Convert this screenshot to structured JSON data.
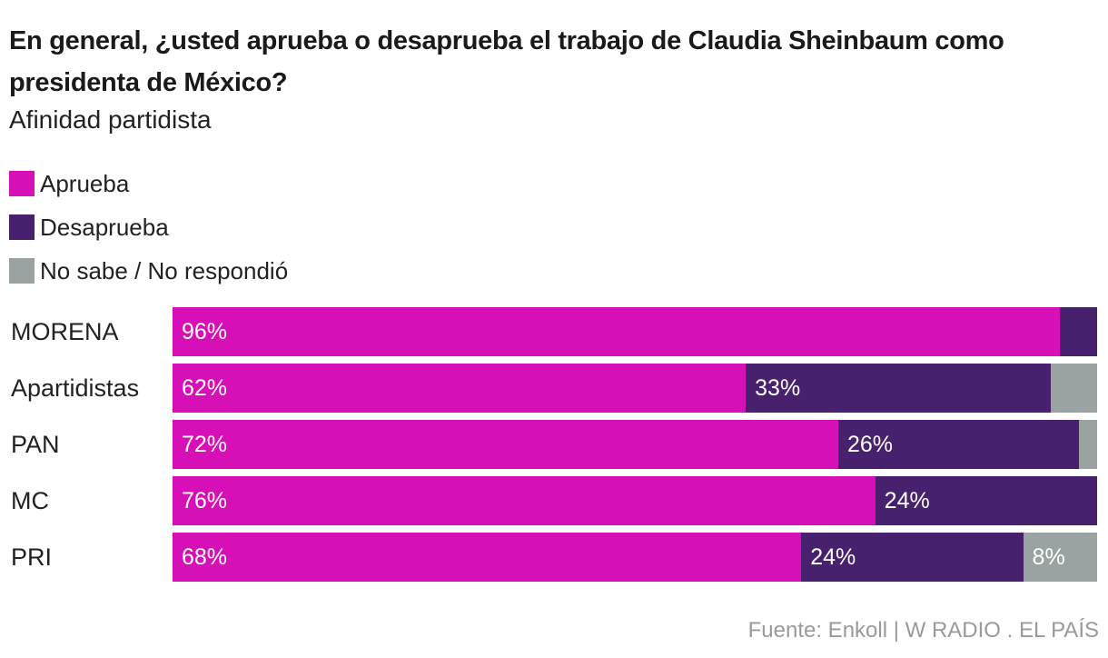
{
  "chart_data": {
    "type": "bar",
    "orientation": "horizontal",
    "stacked": true,
    "title": "En general, ¿usted aprueba o desaprueba el trabajo de Claudia Sheinbaum como presidenta de México?",
    "subtitle": "Afinidad partidista",
    "legend_position": "top-left",
    "xlim": [
      0,
      100
    ],
    "categories": [
      "MORENA",
      "Apartidistas",
      "PAN",
      "MC",
      "PRI"
    ],
    "series": [
      {
        "name": "Aprueba",
        "color": "#d60fb6",
        "values": [
          96,
          62,
          72,
          76,
          68
        ],
        "labels": [
          "96%",
          "62%",
          "72%",
          "76%",
          "68%"
        ]
      },
      {
        "name": "Desaprueba",
        "color": "#47206e",
        "values": [
          4,
          33,
          26,
          24,
          24
        ],
        "labels": [
          "",
          "33%",
          "26%",
          "24%",
          "24%"
        ]
      },
      {
        "name": "No sabe / No respondió",
        "color": "#9aa3a1",
        "values": [
          0,
          5,
          2,
          0,
          8
        ],
        "labels": [
          "",
          "",
          "",
          "",
          "8%"
        ]
      }
    ],
    "source": "Fuente: Enkoll | W RADIO . EL PAÍS"
  }
}
